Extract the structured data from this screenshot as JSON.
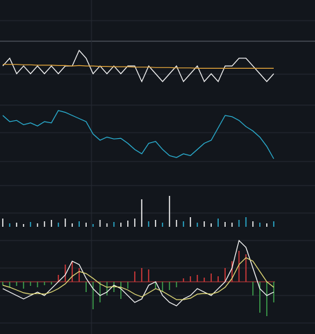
{
  "chart_data": [
    {
      "type": "line",
      "ylim": [
        0,
        6
      ],
      "series": [
        {
          "name": null,
          "color": "#ffffff",
          "values": [
            3,
            4,
            2,
            3,
            2,
            3,
            2,
            3,
            2,
            3,
            3,
            5,
            4,
            2,
            3,
            2,
            3,
            2,
            3,
            3,
            1,
            3,
            2,
            1,
            2,
            3,
            1,
            2,
            3,
            1,
            2,
            1,
            3,
            3,
            4,
            4,
            3,
            2,
            1,
            2
          ]
        },
        {
          "name": null,
          "color": "#e8a93c",
          "values": [
            3.2,
            3.2,
            3.2,
            3.15,
            3.15,
            3.1,
            3.1,
            3.1,
            3.05,
            3.05,
            3.0,
            3.05,
            3.0,
            3.0,
            2.95,
            2.95,
            2.9,
            2.9,
            2.9,
            2.85,
            2.85,
            2.85,
            2.8,
            2.8,
            2.8,
            2.75,
            2.75,
            2.75,
            2.7,
            2.7,
            2.7,
            2.7,
            2.7,
            2.7,
            2.7,
            2.7,
            2.7,
            2.7,
            2.7,
            2.7
          ]
        }
      ]
    },
    {
      "type": "line",
      "ylim": [
        0,
        100
      ],
      "series": [
        {
          "name": null,
          "color": "#2bb3d6",
          "values": [
            80,
            70,
            72,
            65,
            68,
            63,
            70,
            68,
            88,
            85,
            80,
            75,
            70,
            50,
            40,
            45,
            42,
            43,
            35,
            25,
            18,
            35,
            38,
            25,
            15,
            12,
            18,
            15,
            25,
            35,
            40,
            60,
            80,
            78,
            72,
            62,
            55,
            45,
            30,
            10
          ]
        }
      ]
    },
    {
      "type": "bar",
      "ylim": [
        0,
        50
      ],
      "values": [
        12,
        5,
        6,
        4,
        7,
        5,
        8,
        10,
        6,
        12,
        5,
        8,
        6,
        4,
        10,
        5,
        7,
        6,
        9,
        12,
        40,
        8,
        10,
        6,
        45,
        10,
        8,
        14,
        6,
        8,
        5,
        12,
        7,
        6,
        10,
        14,
        8,
        6,
        5,
        8
      ],
      "colors": [
        "#ffffff",
        "#2bb3d6",
        "#ffffff",
        "#ffffff",
        "#2bb3d6",
        "#ffffff",
        "#ffffff",
        "#ffffff",
        "#2bb3d6",
        "#ffffff",
        "#ffffff",
        "#2bb3d6",
        "#ffffff",
        "#2bb3d6",
        "#ffffff",
        "#ffffff",
        "#2bb3d6",
        "#ffffff",
        "#ffffff",
        "#ffffff",
        "#ffffff",
        "#2bb3d6",
        "#ffffff",
        "#2bb3d6",
        "#ffffff",
        "#ffffff",
        "#2bb3d6",
        "#ffffff",
        "#2bb3d6",
        "#ffffff",
        "#ffffff",
        "#2bb3d6",
        "#ffffff",
        "#ffffff",
        "#2bb3d6",
        "#2bb3d6",
        "#ffffff",
        "#2bb3d6",
        "#ffffff",
        "#2bb3d6"
      ]
    },
    {
      "type": "macd",
      "ylim": [
        -60,
        60
      ],
      "up_color": "#e03c3c",
      "down_color": "#3fa34d",
      "values": [
        -5,
        -8,
        -6,
        -10,
        -6,
        -8,
        -5,
        -4,
        10,
        25,
        30,
        20,
        -15,
        -40,
        -30,
        -20,
        -15,
        -25,
        -10,
        15,
        20,
        18,
        -10,
        -15,
        -12,
        -8,
        5,
        8,
        10,
        6,
        12,
        8,
        20,
        30,
        45,
        40,
        -20,
        -45,
        -50,
        -30
      ],
      "series": [
        {
          "name": null,
          "color": "#ffffff",
          "values": [
            -10,
            -15,
            -20,
            -25,
            -20,
            -15,
            -20,
            -10,
            0,
            10,
            30,
            25,
            5,
            -10,
            -20,
            -15,
            -5,
            -10,
            -20,
            -30,
            -25,
            -5,
            0,
            -20,
            -30,
            -35,
            -25,
            -20,
            -10,
            -15,
            -20,
            -10,
            0,
            20,
            60,
            50,
            20,
            -10,
            -20,
            -15
          ]
        },
        {
          "name": null,
          "color": "#e8e07a",
          "values": [
            -5,
            -8,
            -12,
            -16,
            -18,
            -17,
            -18,
            -15,
            -10,
            -3,
            8,
            15,
            12,
            5,
            -3,
            -8,
            -7,
            -8,
            -12,
            -18,
            -22,
            -16,
            -10,
            -14,
            -20,
            -26,
            -26,
            -24,
            -18,
            -17,
            -18,
            -15,
            -8,
            5,
            25,
            35,
            30,
            15,
            0,
            -8
          ]
        }
      ]
    }
  ]
}
